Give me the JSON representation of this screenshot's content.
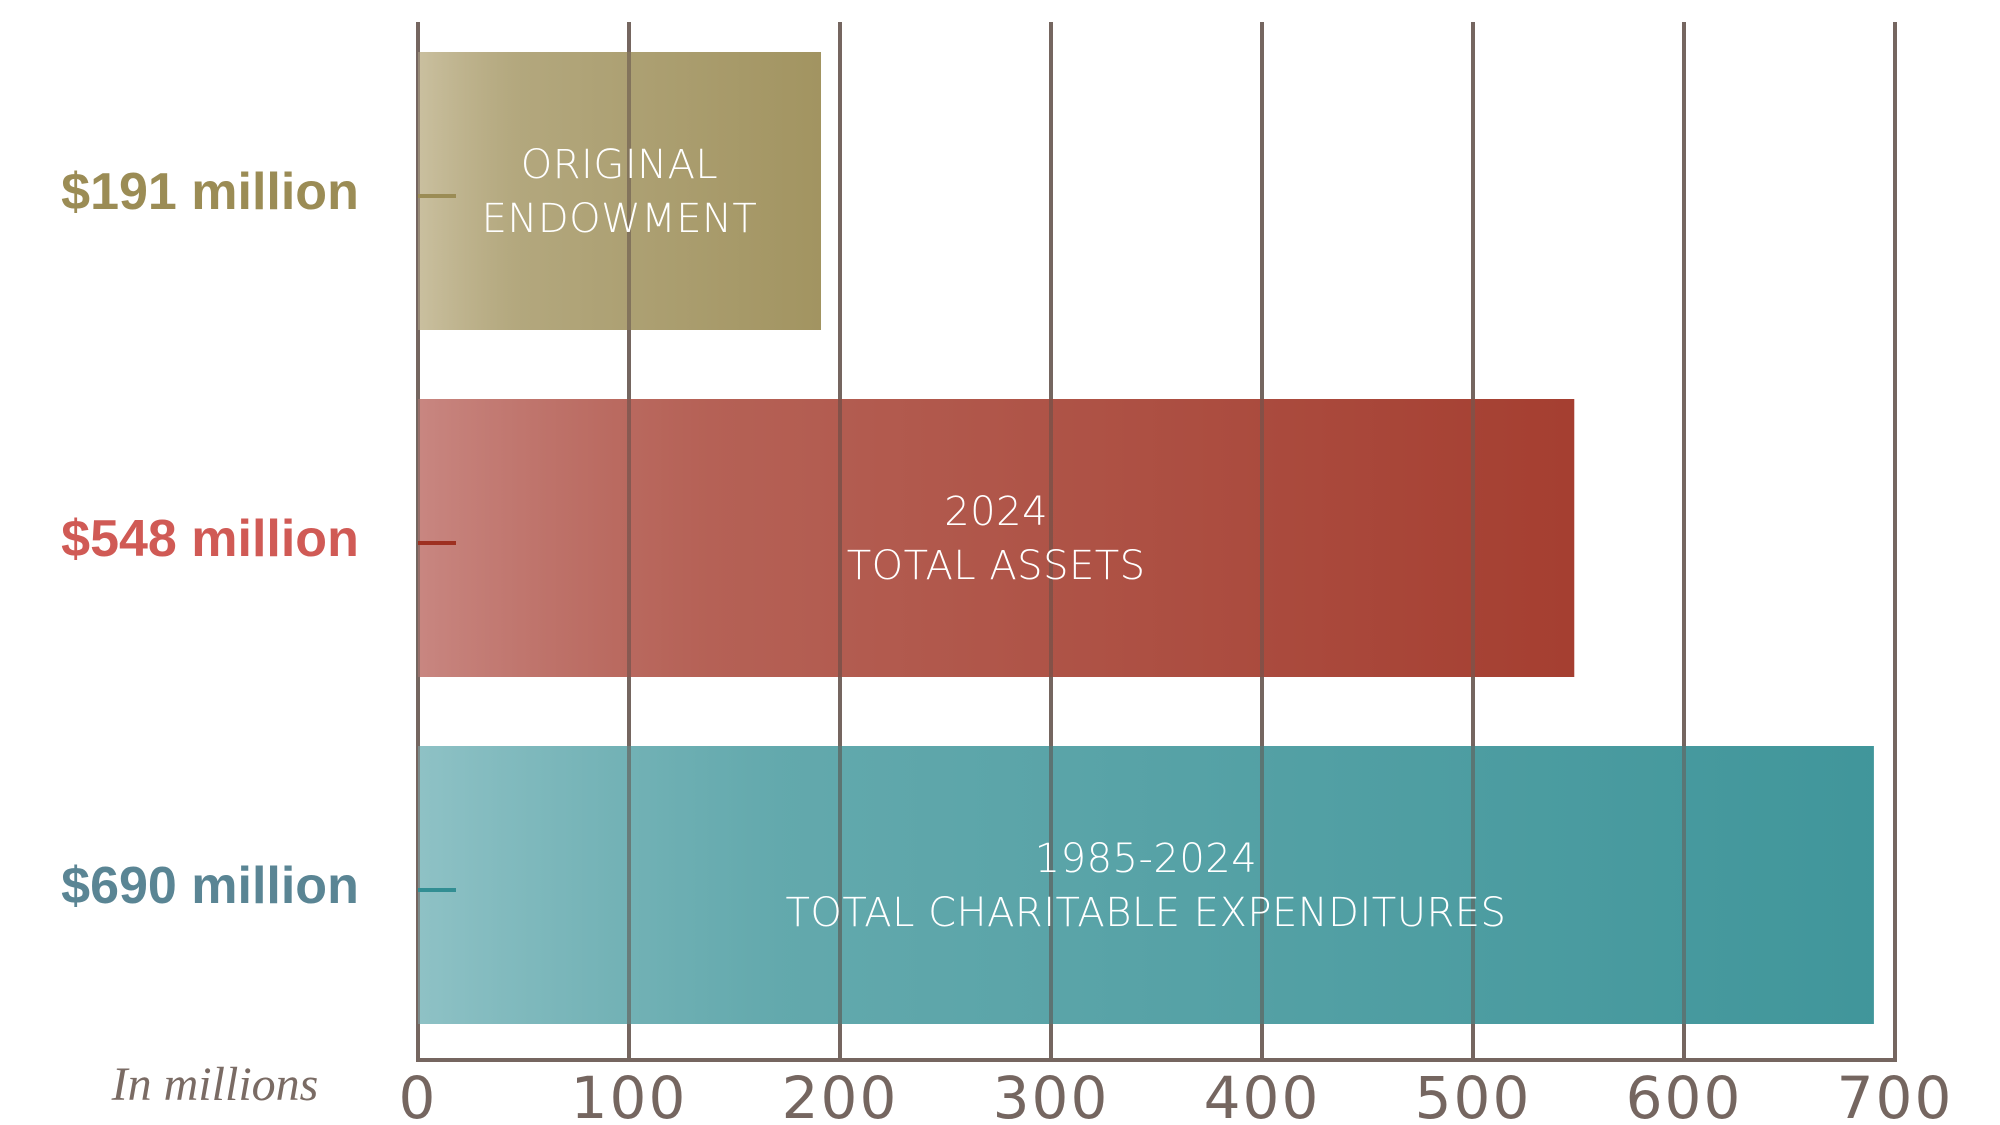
{
  "chart_data": {
    "type": "bar",
    "orientation": "horizontal",
    "categories": [
      "ORIGINAL ENDOWMENT",
      "2024 TOTAL ASSETS",
      "1985-2024 TOTAL CHARITABLE EXPENDITURES"
    ],
    "bars": [
      {
        "value": 191,
        "value_label": "$191 million",
        "label_lines": [
          "ORIGINAL",
          "ENDOWMENT"
        ],
        "color": "#9b8c55",
        "color_light": "#c6bb98",
        "label_color": "#9b8c55"
      },
      {
        "value": 548,
        "value_label": "$548 million",
        "label_lines": [
          "2024",
          "TOTAL ASSETS"
        ],
        "color": "#9e3021",
        "color_light": "#c47d77",
        "label_color": "#d05a55"
      },
      {
        "value": 690,
        "value_label": "$690 million",
        "label_lines": [
          "1985-2024",
          "TOTAL CHARITABLE EXPENDITURES"
        ],
        "color": "#328e93",
        "color_light": "#86bdc1",
        "label_color": "#5a8594"
      }
    ],
    "xlim": [
      0,
      700
    ],
    "xticks": [
      0,
      100,
      200,
      300,
      400,
      500,
      600,
      700
    ],
    "xtick_labels": [
      "0",
      "100",
      "200",
      "300",
      "400",
      "500",
      "600",
      "700"
    ],
    "unit_note": "In millions",
    "grid": true,
    "grid_color": "#756660",
    "title": "",
    "xlabel": "",
    "ylabel": ""
  }
}
